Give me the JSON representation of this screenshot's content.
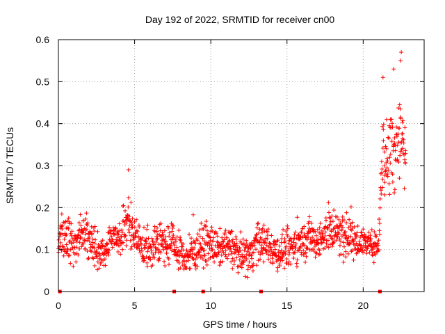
{
  "chart_data": {
    "type": "scatter",
    "title": "Day 192 of 2022, SRMTID for receiver cn00",
    "xlabel": "GPS time / hours",
    "ylabel": "SRMTID / TECUs",
    "xlim": [
      0,
      24
    ],
    "ylim": [
      0,
      0.6
    ],
    "xticks": [
      0,
      5,
      10,
      15,
      20
    ],
    "yticks": [
      0,
      0.1,
      0.2,
      0.3,
      0.4,
      0.5,
      0.6
    ],
    "xtick_labels": [
      "0",
      "5",
      "10",
      "15",
      "20"
    ],
    "ytick_labels": [
      "0",
      "0.1",
      "0.2",
      "0.3",
      "0.4",
      "0.5",
      "0.6"
    ],
    "grid": true,
    "marker": "+",
    "color": "#ff0000",
    "gap_markers_x": [
      0.1,
      7.6,
      9.5,
      13.3,
      21.1
    ],
    "envelope": {
      "x": [
        0,
        0.5,
        1,
        1.5,
        2,
        2.5,
        3,
        3.5,
        4,
        4.5,
        5,
        5.5,
        6,
        6.5,
        7,
        7.5,
        8,
        8.5,
        9,
        9.5,
        10,
        10.5,
        11,
        11.5,
        12,
        12.5,
        13,
        13.5,
        14,
        14.5,
        15,
        15.5,
        16,
        16.5,
        17,
        17.5,
        18,
        18.5,
        19,
        19.5,
        20,
        20.5,
        21,
        21.2,
        21.5,
        22,
        22.5,
        22.8
      ],
      "center": [
        0.12,
        0.13,
        0.11,
        0.14,
        0.13,
        0.1,
        0.09,
        0.13,
        0.12,
        0.17,
        0.12,
        0.11,
        0.1,
        0.12,
        0.11,
        0.12,
        0.09,
        0.08,
        0.1,
        0.11,
        0.11,
        0.1,
        0.11,
        0.1,
        0.09,
        0.08,
        0.12,
        0.11,
        0.1,
        0.09,
        0.1,
        0.11,
        0.12,
        0.13,
        0.12,
        0.14,
        0.15,
        0.14,
        0.13,
        0.12,
        0.12,
        0.11,
        0.11,
        0.3,
        0.33,
        0.36,
        0.37,
        0.33
      ],
      "spread": [
        0.03,
        0.05,
        0.04,
        0.04,
        0.05,
        0.04,
        0.03,
        0.03,
        0.04,
        0.06,
        0.04,
        0.04,
        0.04,
        0.04,
        0.04,
        0.04,
        0.04,
        0.04,
        0.04,
        0.04,
        0.04,
        0.04,
        0.04,
        0.04,
        0.04,
        0.04,
        0.04,
        0.04,
        0.04,
        0.04,
        0.04,
        0.04,
        0.04,
        0.04,
        0.04,
        0.04,
        0.05,
        0.05,
        0.04,
        0.04,
        0.03,
        0.03,
        0.03,
        0.09,
        0.11,
        0.1,
        0.1,
        0.07
      ]
    },
    "peaks": [
      {
        "x": 4.6,
        "y": 0.29
      },
      {
        "x": 22.5,
        "y": 0.57
      },
      {
        "x": 22.45,
        "y": 0.55
      },
      {
        "x": 22.0,
        "y": 0.53
      },
      {
        "x": 21.3,
        "y": 0.51
      }
    ],
    "point_count": 1400
  }
}
